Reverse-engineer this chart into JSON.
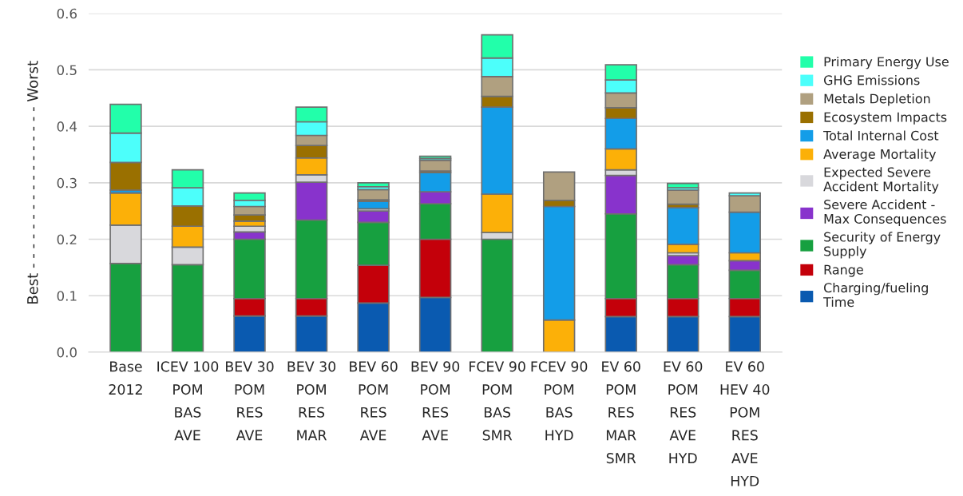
{
  "chart_data": {
    "type": "bar",
    "stacked": true,
    "ylabel": "Best - - - - - - - - - - - - - - - - - Worst",
    "categories": [
      "Base\n2012",
      "ICEV 100\nPOM\nBAS\nAVE",
      "BEV 30\nPOM\nRES\nAVE",
      "BEV 30\nPOM\nRES\nMAR",
      "BEV 60\nPOM\nRES\nAVE",
      "BEV 90\nPOM\nRES\nAVE",
      "FCEV 90\nPOM\nBAS\nSMR",
      "FCEV 90\nPOM\nBAS\nHYD",
      "EV 60\nPOM\nRES\nMAR\nSMR",
      "EV 60\nPOM\nRES\nAVE\nHYD",
      "EV 60\nHEV 40\nPOM\nRES\nAVE\nHYD"
    ],
    "series": [
      {
        "name": "Charging/fueling\nTime",
        "color": "#0a5ab0",
        "values": [
          null,
          null,
          0.064,
          0.064,
          0.087,
          0.097,
          null,
          null,
          0.063,
          0.063,
          0.063
        ]
      },
      {
        "name": "Range",
        "color": "#c4000a",
        "values": [
          null,
          null,
          0.031,
          0.031,
          0.067,
          0.103,
          null,
          null,
          0.032,
          0.032,
          0.032
        ]
      },
      {
        "name": "Security of Energy\nSupply",
        "color": "#17a040",
        "values": [
          0.157,
          0.155,
          0.105,
          0.139,
          0.076,
          0.063,
          0.2,
          null,
          0.15,
          0.06,
          0.05
        ]
      },
      {
        "name": "Severe Accident -\nMax Consequences",
        "color": "#8833cc",
        "values": [
          null,
          null,
          0.013,
          0.067,
          0.02,
          0.021,
          null,
          null,
          0.068,
          0.016,
          0.017
        ]
      },
      {
        "name": "Expected Severe\nAccident Mortality",
        "color": "#d8d8dc",
        "values": [
          0.068,
          0.031,
          0.01,
          0.013,
          0.004,
          null,
          0.012,
          null,
          0.01,
          0.005,
          null
        ]
      },
      {
        "name": "Average Mortality",
        "color": "#fcb008",
        "values": [
          0.057,
          0.037,
          0.009,
          0.03,
          null,
          null,
          0.068,
          0.057,
          0.037,
          0.015,
          0.014
        ]
      },
      {
        "name": "Total Internal Cost",
        "color": "#139de8",
        "values": [
          0.005,
          null,
          null,
          null,
          0.013,
          0.034,
          0.154,
          0.201,
          0.054,
          0.065,
          0.072
        ]
      },
      {
        "name": "Ecosystem Impacts",
        "color": "#9a7000",
        "values": [
          0.049,
          0.036,
          0.011,
          0.022,
          0.003,
          0.003,
          0.019,
          0.011,
          0.019,
          0.006,
          null
        ]
      },
      {
        "name": "Metals Depletion",
        "color": "#b0a080",
        "values": [
          null,
          null,
          0.015,
          0.018,
          0.018,
          0.019,
          0.035,
          0.05,
          0.026,
          0.025,
          0.029
        ]
      },
      {
        "name": "GHG Emissions",
        "color": "#4cfffb",
        "values": [
          0.052,
          0.032,
          0.011,
          0.024,
          0.005,
          0.003,
          0.033,
          null,
          0.023,
          0.004,
          0.005
        ]
      },
      {
        "name": "Primary Energy Use",
        "color": "#22ffaa",
        "values": [
          0.051,
          0.032,
          0.013,
          0.026,
          0.007,
          0.004,
          0.041,
          null,
          0.027,
          0.008,
          null
        ]
      }
    ],
    "ylim": [
      0,
      0.6
    ],
    "yticks": [
      {
        "value": 0,
        "label": "0.0"
      },
      0.1,
      0.2,
      0.3,
      0.4,
      0.5,
      0.6
    ],
    "grid": "y",
    "legend": "right"
  }
}
